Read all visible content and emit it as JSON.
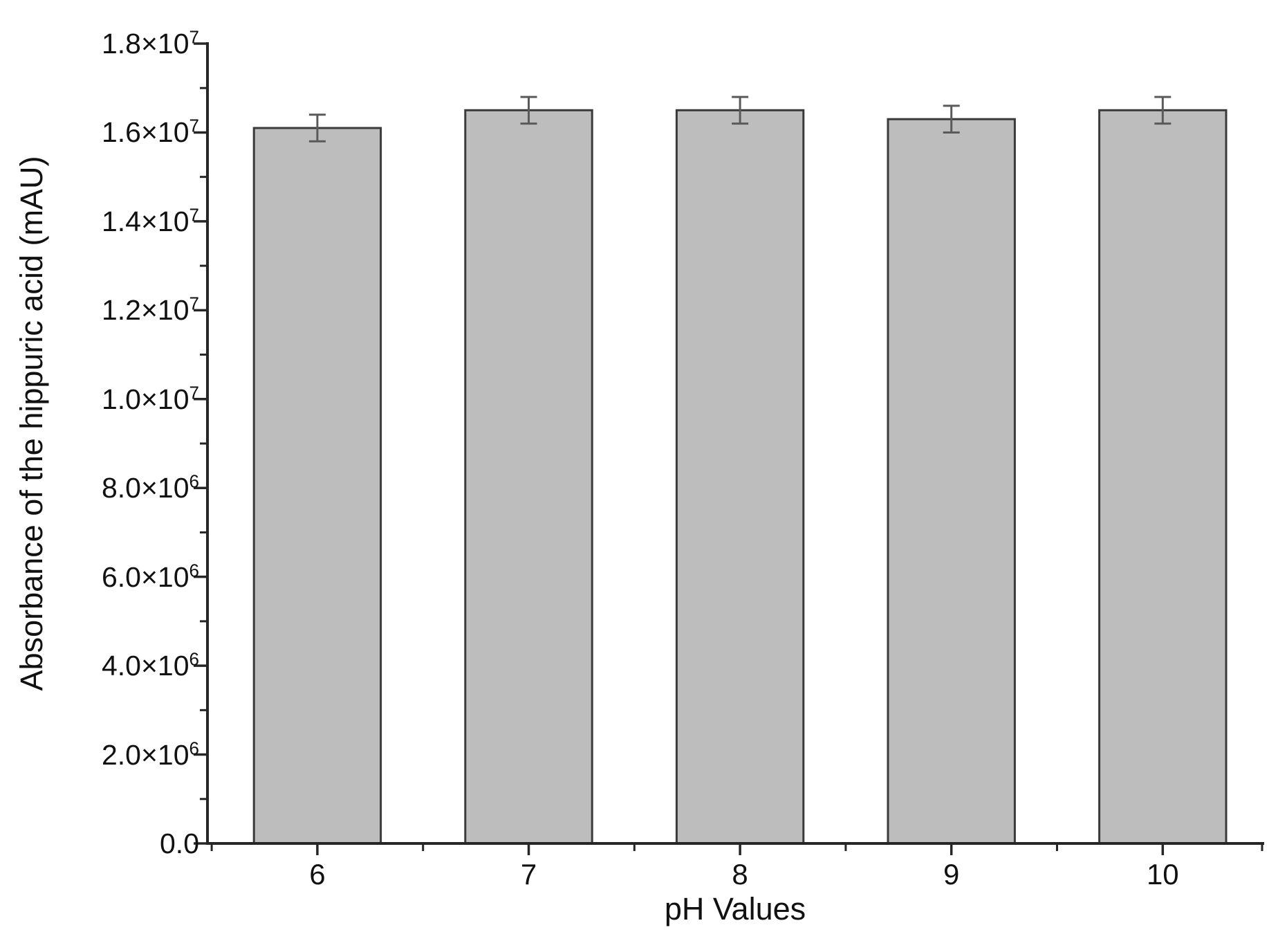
{
  "chart_data": {
    "type": "bar",
    "title": "",
    "xlabel": "pH Values",
    "ylabel": "Absorbance of the hippuric acid (mAU)",
    "categories": [
      "6",
      "7",
      "8",
      "9",
      "10"
    ],
    "x_values": [
      6,
      7,
      8,
      9,
      10
    ],
    "values": [
      16100000,
      16500000,
      16500000,
      16300000,
      16500000
    ],
    "error_bars": [
      300000,
      300000,
      300000,
      300000,
      300000
    ],
    "ylim": [
      0,
      18000000
    ],
    "xlim": [
      5.48,
      10.48
    ],
    "y_major_tick_step": 2000000,
    "y_minor_tick_step": 1000000,
    "x_minor_tick_positions": [
      5.5,
      6.5,
      7.5,
      8.5,
      9.5,
      10.5
    ],
    "y_tick_labels": [
      {
        "base": "0.0",
        "exp": ""
      },
      {
        "base": "2.0×10",
        "exp": "6"
      },
      {
        "base": "4.0×10",
        "exp": "6"
      },
      {
        "base": "6.0×10",
        "exp": "6"
      },
      {
        "base": "8.0×10",
        "exp": "6"
      },
      {
        "base": "1.0×10",
        "exp": "7"
      },
      {
        "base": "1.2×10",
        "exp": "7"
      },
      {
        "base": "1.4×10",
        "exp": "7"
      },
      {
        "base": "1.6×10",
        "exp": "7"
      },
      {
        "base": "1.8×10",
        "exp": "7"
      }
    ],
    "grid": false,
    "legend": null,
    "bar_width_fraction": 0.6,
    "colors": {
      "bar_fill": "#bdbdbd",
      "bar_border": "#3a3a3a",
      "error_bar": "#5a5a5a",
      "axis": "#262626",
      "text": "#111111",
      "background": "#ffffff"
    }
  }
}
